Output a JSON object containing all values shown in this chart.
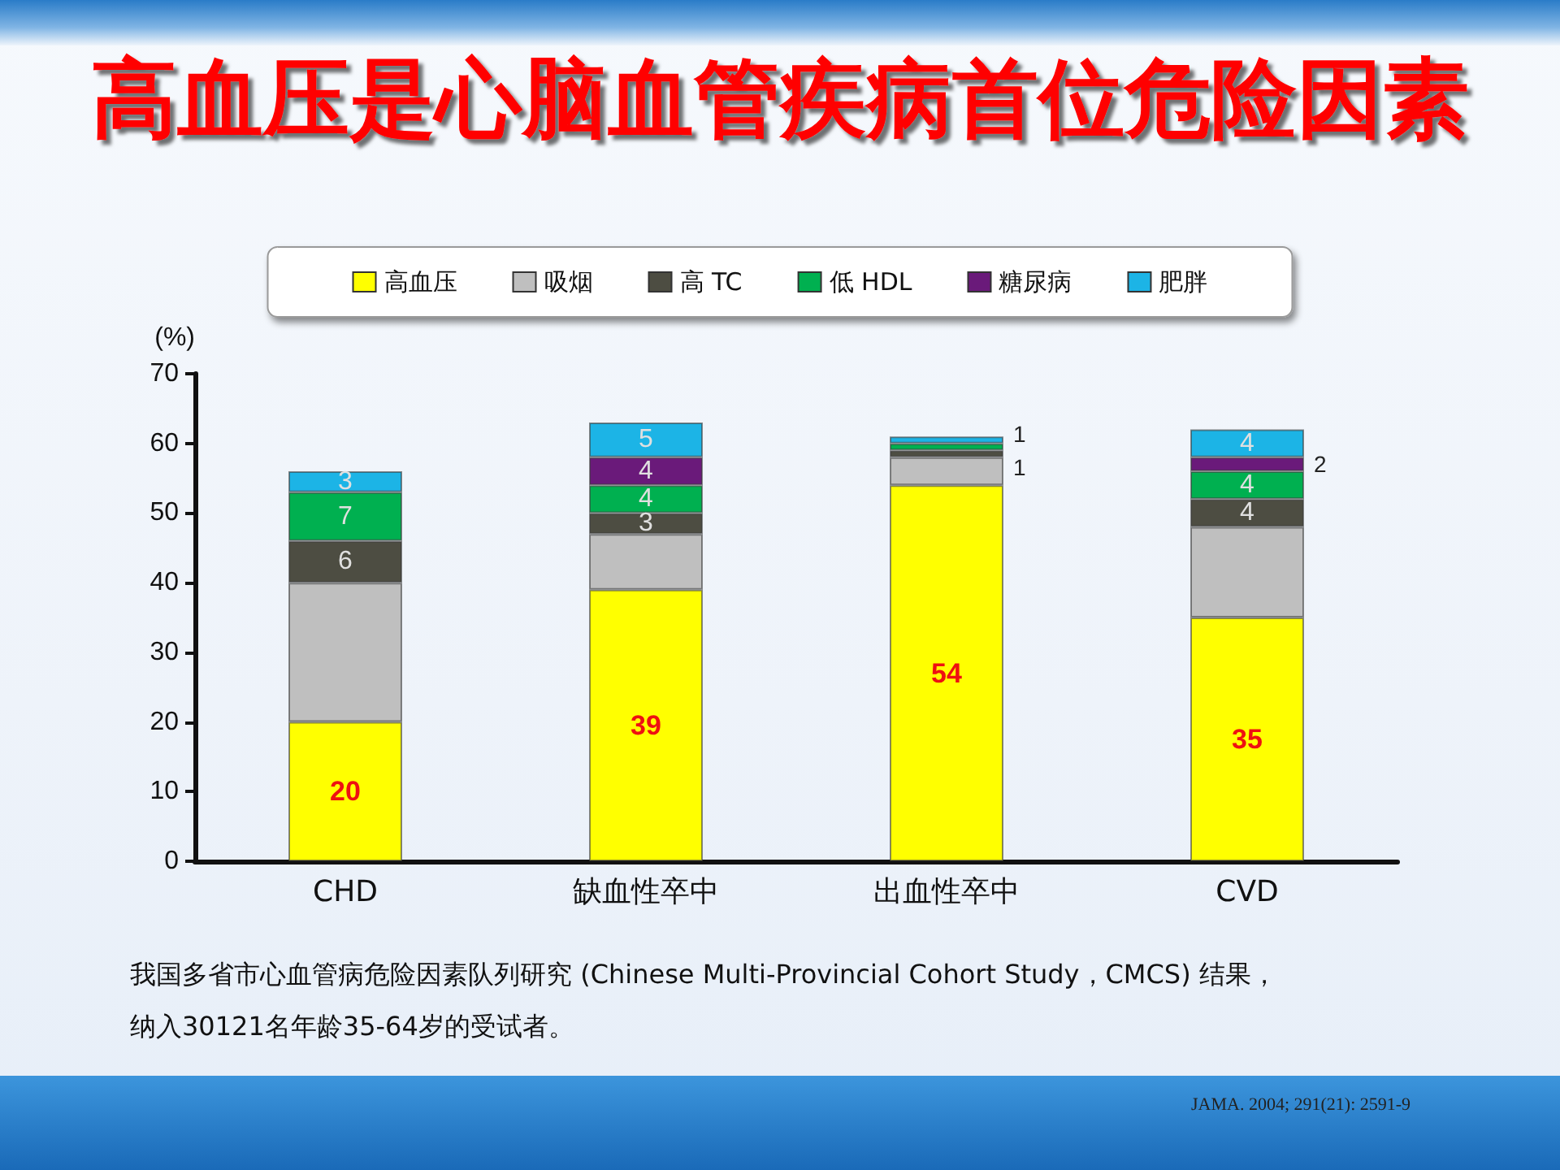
{
  "chart_data": {
    "type": "bar",
    "title": "高血压是心脑血管疾病首位危险因素",
    "ylabel": "(%)",
    "categories": [
      "CHD",
      "缺血性卒中",
      "出血性卒中",
      "CVD"
    ],
    "stacked": true,
    "ylim": [
      0,
      70
    ],
    "yticks": [
      0,
      10,
      20,
      30,
      40,
      50,
      60,
      70
    ],
    "grid": false,
    "legend": "top",
    "series": [
      {
        "name": "高血压",
        "color": "#ffff00",
        "values": [
          20,
          39,
          54,
          35
        ],
        "value_labels": [
          "20",
          "39",
          "54",
          "35"
        ]
      },
      {
        "name": "吸烟",
        "color": "#bfbfbf",
        "values": [
          20,
          8,
          4,
          13
        ]
      },
      {
        "name": "高 TC",
        "color": "#4d4d42",
        "values": [
          6,
          3,
          1,
          4
        ],
        "value_labels": [
          "6",
          "3",
          "1",
          "4"
        ]
      },
      {
        "name": "低 HDL",
        "color": "#00b050",
        "values": [
          7,
          4,
          1,
          4
        ],
        "value_labels": [
          "7",
          "4",
          "1",
          "4"
        ]
      },
      {
        "name": "糖尿病",
        "color": "#6a1a7a",
        "values": [
          null,
          4,
          null,
          2
        ],
        "value_labels": [
          null,
          "4",
          null,
          "2"
        ]
      },
      {
        "name": "肥胖",
        "color": "#1cb4e6",
        "values": [
          3,
          5,
          1,
          4
        ],
        "value_labels": [
          "3",
          "5",
          null,
          "4"
        ]
      }
    ],
    "annotations": [
      "我国多省市心血管病危险因素队列研究 (Chinese Multi-Provincial Cohort Study，CMCS) 结果，",
      "纳入30121名年龄35-64岁的受试者。",
      "JAMA. 2004; 291(21): 2591-9"
    ]
  }
}
